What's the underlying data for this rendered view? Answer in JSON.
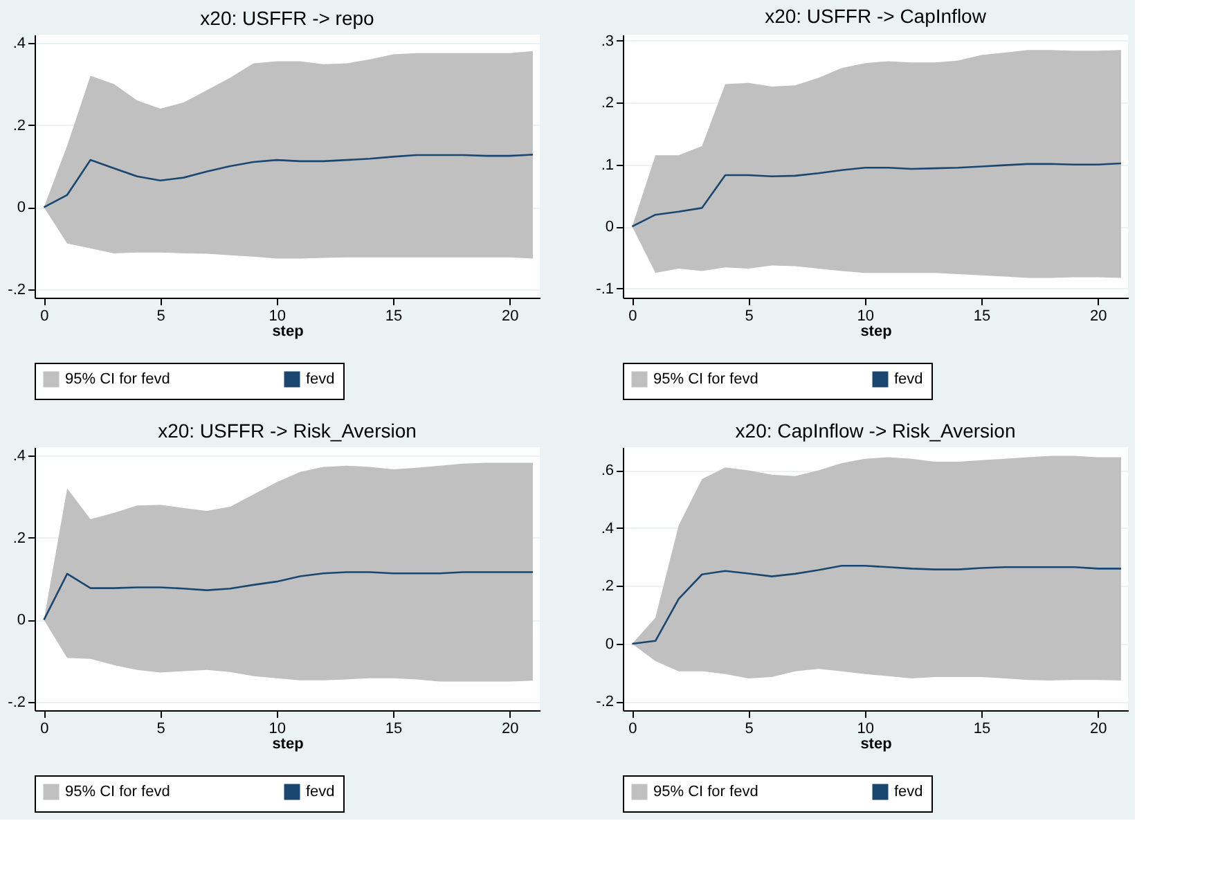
{
  "chart_data": [
    {
      "type": "line",
      "title": "x20: USFFR -> repo",
      "xlabel": "step",
      "x": [
        0,
        1,
        2,
        3,
        4,
        5,
        6,
        7,
        8,
        9,
        10,
        11,
        12,
        13,
        14,
        15,
        16,
        17,
        18,
        19,
        20,
        21
      ],
      "xlim": [
        -0.4,
        21.3
      ],
      "xticks": [
        0,
        5,
        10,
        15,
        20
      ],
      "ylim": [
        -0.22,
        0.42
      ],
      "yticks": [
        {
          "value": -0.2,
          "label": "-.2"
        },
        {
          "value": 0,
          "label": "0"
        },
        {
          "value": 0.2,
          "label": ".2"
        },
        {
          "value": 0.4,
          "label": ".4"
        }
      ],
      "grid": "y",
      "legend": "bottom",
      "series": [
        {
          "name": "95% CI for fevd",
          "type": "area",
          "color": "#c0c0c0",
          "values": [
            null,
            null,
            null,
            null,
            null,
            null,
            null,
            null,
            null,
            null,
            null,
            null,
            null,
            null,
            null,
            null,
            null,
            null,
            null,
            null,
            null,
            null
          ],
          "upper": [
            0,
            0.15,
            0.32,
            0.3,
            0.26,
            0.24,
            0.255,
            0.285,
            0.315,
            0.35,
            0.355,
            0.355,
            0.348,
            0.35,
            0.36,
            0.372,
            0.375,
            0.375,
            0.375,
            0.375,
            0.375,
            0.38
          ],
          "lower": [
            0,
            -0.088,
            -0.1,
            -0.112,
            -0.11,
            -0.11,
            -0.112,
            -0.113,
            -0.117,
            -0.12,
            -0.125,
            -0.125,
            -0.123,
            -0.122,
            -0.122,
            -0.122,
            -0.122,
            -0.122,
            -0.122,
            -0.122,
            -0.122,
            -0.125
          ]
        },
        {
          "name": "fevd",
          "type": "line",
          "color": "#1a476f",
          "values": [
            0,
            0.03,
            0.115,
            0.095,
            0.075,
            0.065,
            0.072,
            0.087,
            0.1,
            0.11,
            0.115,
            0.112,
            0.112,
            0.115,
            0.118,
            0.123,
            0.127,
            0.127,
            0.127,
            0.125,
            0.125,
            0.128
          ]
        }
      ]
    },
    {
      "type": "line",
      "title": "x20: USFFR -> CapInflow",
      "xlabel": "step",
      "x": [
        0,
        1,
        2,
        3,
        4,
        5,
        6,
        7,
        8,
        9,
        10,
        11,
        12,
        13,
        14,
        15,
        16,
        17,
        18,
        19,
        20,
        21
      ],
      "xlim": [
        -0.4,
        21.3
      ],
      "xticks": [
        0,
        5,
        10,
        15,
        20
      ],
      "ylim": [
        -0.115,
        0.31
      ],
      "yticks": [
        {
          "value": -0.1,
          "label": "-.1"
        },
        {
          "value": 0,
          "label": "0"
        },
        {
          "value": 0.1,
          "label": ".1"
        },
        {
          "value": 0.2,
          "label": ".2"
        },
        {
          "value": 0.3,
          "label": ".3"
        }
      ],
      "grid": "y",
      "legend": "bottom",
      "series": [
        {
          "name": "95% CI for fevd",
          "type": "area",
          "color": "#c0c0c0",
          "values": [
            null,
            null,
            null,
            null,
            null,
            null,
            null,
            null,
            null,
            null,
            null,
            null,
            null,
            null,
            null,
            null,
            null,
            null,
            null,
            null,
            null,
            null
          ],
          "upper": [
            0,
            0.115,
            0.115,
            0.13,
            0.23,
            0.232,
            0.226,
            0.228,
            0.24,
            0.256,
            0.264,
            0.267,
            0.265,
            0.265,
            0.268,
            0.277,
            0.281,
            0.285,
            0.285,
            0.284,
            0.284,
            0.285
          ],
          "lower": [
            0,
            -0.075,
            -0.068,
            -0.072,
            -0.066,
            -0.068,
            -0.063,
            -0.064,
            -0.068,
            -0.072,
            -0.075,
            -0.075,
            -0.075,
            -0.075,
            -0.077,
            -0.079,
            -0.081,
            -0.083,
            -0.083,
            -0.082,
            -0.082,
            -0.083
          ]
        },
        {
          "name": "fevd",
          "type": "line",
          "color": "#1a476f",
          "values": [
            0,
            0.019,
            0.024,
            0.03,
            0.083,
            0.083,
            0.081,
            0.082,
            0.086,
            0.091,
            0.095,
            0.095,
            0.093,
            0.094,
            0.095,
            0.097,
            0.099,
            0.101,
            0.101,
            0.1,
            0.1,
            0.102
          ]
        }
      ]
    },
    {
      "type": "line",
      "title": "x20: USFFR -> Risk_Aversion",
      "xlabel": "step",
      "x": [
        0,
        1,
        2,
        3,
        4,
        5,
        6,
        7,
        8,
        9,
        10,
        11,
        12,
        13,
        14,
        15,
        16,
        17,
        18,
        19,
        20,
        21
      ],
      "xlim": [
        -0.4,
        21.3
      ],
      "xticks": [
        0,
        5,
        10,
        15,
        20
      ],
      "ylim": [
        -0.22,
        0.42
      ],
      "yticks": [
        {
          "value": -0.2,
          "label": "-.2"
        },
        {
          "value": 0,
          "label": "0"
        },
        {
          "value": 0.2,
          "label": ".2"
        },
        {
          "value": 0.4,
          "label": ".4"
        }
      ],
      "grid": "y",
      "legend": "bottom",
      "series": [
        {
          "name": "95% CI for fevd",
          "type": "area",
          "color": "#c0c0c0",
          "values": [
            null,
            null,
            null,
            null,
            null,
            null,
            null,
            null,
            null,
            null,
            null,
            null,
            null,
            null,
            null,
            null,
            null,
            null,
            null,
            null,
            null,
            null
          ],
          "upper": [
            0,
            0.32,
            0.245,
            0.26,
            0.278,
            0.28,
            0.272,
            0.265,
            0.275,
            0.305,
            0.335,
            0.36,
            0.372,
            0.375,
            0.372,
            0.366,
            0.37,
            0.375,
            0.38,
            0.382,
            0.382,
            0.382
          ],
          "lower": [
            0,
            -0.093,
            -0.095,
            -0.11,
            -0.122,
            -0.128,
            -0.125,
            -0.122,
            -0.127,
            -0.137,
            -0.142,
            -0.147,
            -0.147,
            -0.145,
            -0.142,
            -0.142,
            -0.145,
            -0.15,
            -0.15,
            -0.15,
            -0.15,
            -0.148
          ]
        },
        {
          "name": "fevd",
          "type": "line",
          "color": "#1a476f",
          "values": [
            0,
            0.112,
            0.077,
            0.077,
            0.079,
            0.079,
            0.076,
            0.072,
            0.076,
            0.085,
            0.093,
            0.106,
            0.113,
            0.116,
            0.116,
            0.113,
            0.113,
            0.113,
            0.116,
            0.116,
            0.116,
            0.116
          ]
        }
      ]
    },
    {
      "type": "line",
      "title": "x20: CapInflow -> Risk_Aversion",
      "xlabel": "step",
      "x": [
        0,
        1,
        2,
        3,
        4,
        5,
        6,
        7,
        8,
        9,
        10,
        11,
        12,
        13,
        14,
        15,
        16,
        17,
        18,
        19,
        20,
        21
      ],
      "xlim": [
        -0.4,
        21.3
      ],
      "xticks": [
        0,
        5,
        10,
        15,
        20
      ],
      "ylim": [
        -0.23,
        0.68
      ],
      "yticks": [
        {
          "value": -0.2,
          "label": "-.2"
        },
        {
          "value": 0,
          "label": "0"
        },
        {
          "value": 0.2,
          "label": ".2"
        },
        {
          "value": 0.4,
          "label": ".4"
        },
        {
          "value": 0.6,
          "label": ".6"
        }
      ],
      "grid": "y",
      "legend": "bottom",
      "series": [
        {
          "name": "95% CI for fevd",
          "type": "area",
          "color": "#c0c0c0",
          "values": [
            null,
            null,
            null,
            null,
            null,
            null,
            null,
            null,
            null,
            null,
            null,
            null,
            null,
            null,
            null,
            null,
            null,
            null,
            null,
            null,
            null,
            null
          ],
          "upper": [
            0,
            0.09,
            0.41,
            0.57,
            0.61,
            0.6,
            0.585,
            0.58,
            0.6,
            0.625,
            0.64,
            0.645,
            0.64,
            0.63,
            0.63,
            0.635,
            0.64,
            0.645,
            0.65,
            0.65,
            0.645,
            0.645
          ],
          "lower": [
            0,
            -0.06,
            -0.095,
            -0.095,
            -0.105,
            -0.12,
            -0.115,
            -0.095,
            -0.087,
            -0.095,
            -0.105,
            -0.112,
            -0.12,
            -0.115,
            -0.115,
            -0.115,
            -0.12,
            -0.125,
            -0.127,
            -0.125,
            -0.125,
            -0.127
          ]
        },
        {
          "name": "fevd",
          "type": "line",
          "color": "#1a476f",
          "values": [
            0,
            0.01,
            0.155,
            0.24,
            0.252,
            0.243,
            0.233,
            0.242,
            0.255,
            0.27,
            0.27,
            0.265,
            0.26,
            0.257,
            0.257,
            0.262,
            0.265,
            0.265,
            0.265,
            0.265,
            0.26,
            0.26
          ]
        }
      ]
    }
  ]
}
